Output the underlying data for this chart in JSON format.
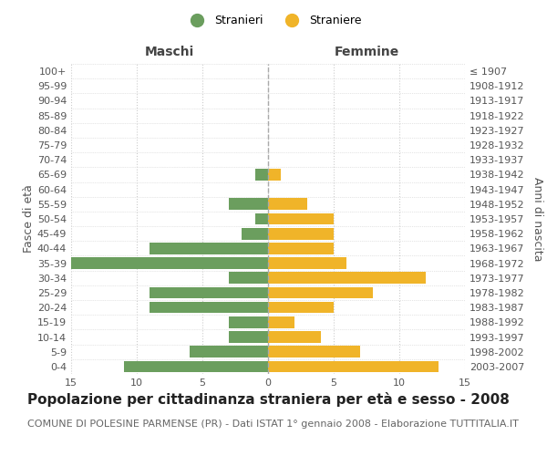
{
  "age_groups": [
    "0-4",
    "5-9",
    "10-14",
    "15-19",
    "20-24",
    "25-29",
    "30-34",
    "35-39",
    "40-44",
    "45-49",
    "50-54",
    "55-59",
    "60-64",
    "65-69",
    "70-74",
    "75-79",
    "80-84",
    "85-89",
    "90-94",
    "95-99",
    "100+"
  ],
  "birth_years": [
    "2003-2007",
    "1998-2002",
    "1993-1997",
    "1988-1992",
    "1983-1987",
    "1978-1982",
    "1973-1977",
    "1968-1972",
    "1963-1967",
    "1958-1962",
    "1953-1957",
    "1948-1952",
    "1943-1947",
    "1938-1942",
    "1933-1937",
    "1928-1932",
    "1923-1927",
    "1918-1922",
    "1913-1917",
    "1908-1912",
    "≤ 1907"
  ],
  "maschi": [
    11,
    6,
    3,
    3,
    9,
    9,
    3,
    15,
    9,
    2,
    1,
    3,
    0,
    1,
    0,
    0,
    0,
    0,
    0,
    0,
    0
  ],
  "femmine": [
    13,
    7,
    4,
    2,
    5,
    8,
    12,
    6,
    5,
    5,
    5,
    3,
    0,
    1,
    0,
    0,
    0,
    0,
    0,
    0,
    0
  ],
  "maschi_color": "#6b9e5e",
  "femmine_color": "#f0b429",
  "background_color": "#ffffff",
  "grid_color": "#cccccc",
  "title": "Popolazione per cittadinanza straniera per età e sesso - 2008",
  "subtitle": "COMUNE DI POLESINE PARMENSE (PR) - Dati ISTAT 1° gennaio 2008 - Elaborazione TUTTITALIA.IT",
  "xlabel_left": "Maschi",
  "xlabel_right": "Femmine",
  "ylabel_left": "Fasce di età",
  "ylabel_right": "Anni di nascita",
  "legend_stranieri": "Stranieri",
  "legend_straniere": "Straniere",
  "xlim": 15,
  "title_fontsize": 11,
  "subtitle_fontsize": 8,
  "tick_fontsize": 8,
  "header_fontsize": 10,
  "ylabel_fontsize": 9
}
